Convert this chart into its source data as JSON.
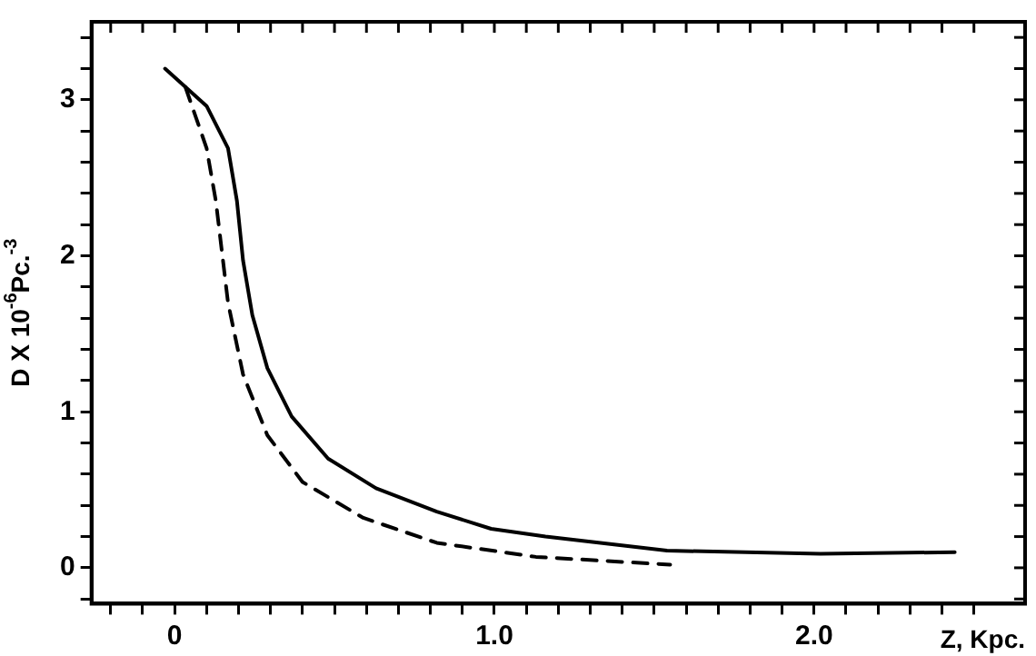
{
  "chart_data": {
    "type": "line",
    "xlabel": "Z, Kpc.",
    "ylabel": "D X 10$^{-6}$Pc.$^{-3}$",
    "xlim": [
      -0.26,
      2.66
    ],
    "ylim": [
      -0.23,
      3.5
    ],
    "xticks": [
      {
        "value": -0.2,
        "label": null
      },
      {
        "value": -0.1,
        "label": null
      },
      {
        "value": 0,
        "label": "0"
      },
      {
        "value": 0.1,
        "label": null
      },
      {
        "value": 0.2,
        "label": null
      },
      {
        "value": 0.3,
        "label": null
      },
      {
        "value": 0.4,
        "label": null
      },
      {
        "value": 0.5,
        "label": null
      },
      {
        "value": 0.6,
        "label": null
      },
      {
        "value": 0.7,
        "label": null
      },
      {
        "value": 0.8,
        "label": null
      },
      {
        "value": 0.9,
        "label": null
      },
      {
        "value": 1,
        "label": "1.0"
      },
      {
        "value": 1.1,
        "label": null
      },
      {
        "value": 1.2,
        "label": null
      },
      {
        "value": 1.3,
        "label": null
      },
      {
        "value": 1.4,
        "label": null
      },
      {
        "value": 1.5,
        "label": null
      },
      {
        "value": 1.6,
        "label": null
      },
      {
        "value": 1.7,
        "label": null
      },
      {
        "value": 1.8,
        "label": null
      },
      {
        "value": 1.9,
        "label": null
      },
      {
        "value": 2,
        "label": "2.0"
      },
      {
        "value": 2.1,
        "label": null
      },
      {
        "value": 2.2,
        "label": null
      },
      {
        "value": 2.3,
        "label": null
      },
      {
        "value": 2.4,
        "label": null
      },
      {
        "value": 2.5,
        "label": null
      }
    ],
    "yticks": [
      {
        "value": -0.2,
        "label": null
      },
      0,
      {
        "value": 0.2,
        "label": null
      },
      {
        "value": 0.4,
        "label": null
      },
      {
        "value": 0.6,
        "label": null
      },
      {
        "value": 0.8,
        "label": null
      },
      1,
      {
        "value": 1.2,
        "label": null
      },
      {
        "value": 1.4,
        "label": null
      },
      {
        "value": 1.6,
        "label": null
      },
      {
        "value": 1.8,
        "label": null
      },
      2,
      {
        "value": 2.2,
        "label": null
      },
      {
        "value": 2.4,
        "label": null
      },
      {
        "value": 2.6,
        "label": null
      },
      {
        "value": 2.8,
        "label": null
      },
      3,
      {
        "value": 3.2,
        "label": null
      },
      {
        "value": 3.4,
        "label": null
      }
    ],
    "grid": false,
    "legend": false,
    "marker": "none",
    "series": [
      {
        "color": "#000000",
        "line_style": "solid",
        "x": [
          -0.03,
          0.1,
          0.167,
          0.195,
          0.214,
          0.243,
          0.29,
          0.366,
          0.48,
          0.63,
          0.82,
          0.99,
          1.16,
          1.54,
          2.02,
          2.44
        ],
        "values": [
          3.2,
          2.96,
          2.69,
          2.35,
          1.97,
          1.62,
          1.28,
          0.97,
          0.7,
          0.51,
          0.36,
          0.25,
          0.2,
          0.11,
          0.09,
          0.1
        ]
      },
      {
        "color": "#000000",
        "line_style": "dashed",
        "x": [
          0.034,
          0.1,
          0.129,
          0.167,
          0.214,
          0.29,
          0.4,
          0.59,
          0.82,
          1.13,
          1.55
        ],
        "values": [
          3.08,
          2.69,
          2.35,
          1.7,
          1.24,
          0.85,
          0.55,
          0.32,
          0.16,
          0.07,
          0.02
        ]
      }
    ]
  }
}
